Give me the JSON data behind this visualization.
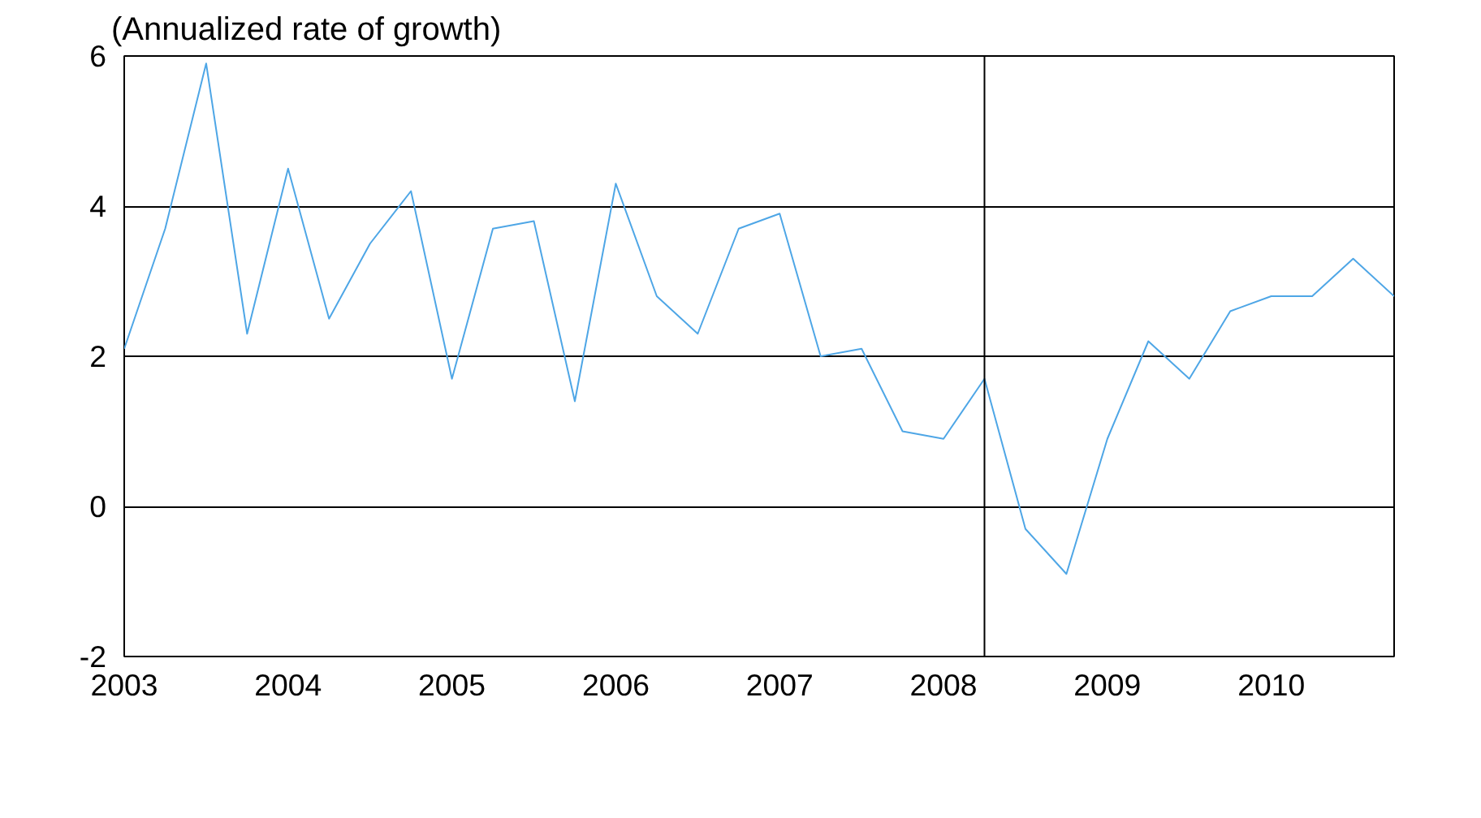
{
  "chart_data": {
    "type": "line",
    "ylabel": "(Annualized rate of growth)",
    "x": [
      2003,
      2003.25,
      2003.5,
      2003.75,
      2004,
      2004.25,
      2004.5,
      2004.75,
      2005,
      2005.25,
      2005.5,
      2005.75,
      2006,
      2006.25,
      2006.5,
      2006.75,
      2007,
      2007.25,
      2007.5,
      2007.75,
      2008,
      2008.25,
      2008.5,
      2008.75,
      2009,
      2009.25,
      2009.5,
      2009.75,
      2010,
      2010.25,
      2010.5,
      2010.75
    ],
    "series": [
      {
        "color": "#4ea6e6",
        "values": [
          2.1,
          3.7,
          5.9,
          2.3,
          4.5,
          2.5,
          3.5,
          4.2,
          1.7,
          3.7,
          3.8,
          1.4,
          4.3,
          2.8,
          2.3,
          3.7,
          3.9,
          2.0,
          2.1,
          1.0,
          0.9,
          1.7,
          -0.3,
          -0.9,
          0.9,
          2.2,
          1.7,
          2.6,
          2.8,
          2.8,
          3.3,
          2.8
        ]
      }
    ],
    "xlim": [
      2003,
      2010.75
    ],
    "xticks": [
      2003,
      2004,
      2005,
      2006,
      2007,
      2008,
      2009,
      2010
    ],
    "ylim": [
      -2,
      6
    ],
    "yticks": [
      -2,
      0,
      2,
      4,
      6
    ],
    "ref_lines": [
      {
        "axis": "x",
        "value": 2008.25,
        "color": "#000000"
      }
    ],
    "grid": "y",
    "marker": "none",
    "line_style": "solid"
  }
}
